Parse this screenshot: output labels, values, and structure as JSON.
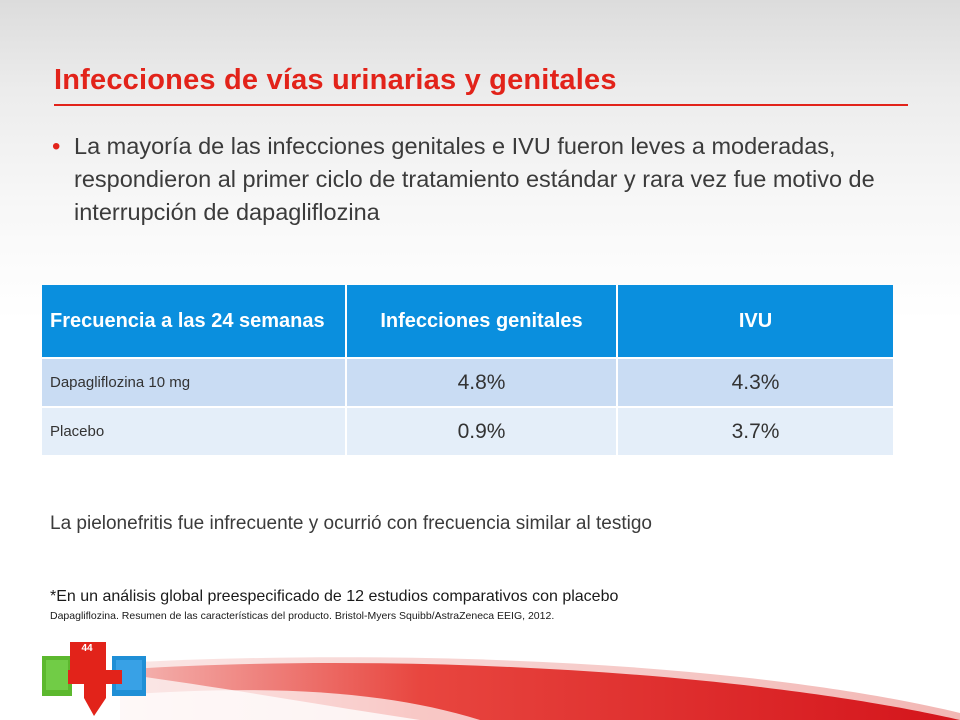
{
  "slide": {
    "title": "Infecciones de vías urinarias y genitales",
    "bullet": "La mayoría de las infecciones genitales e IVU fueron leves a moderadas, respondieron al primer ciclo de tratamiento estándar y rara vez fue motivo de interrupción de dapagliflozina",
    "bullet_marker": "•",
    "table": {
      "headers": [
        "Frecuencia a las 24 semanas",
        "Infecciones genitales",
        "IVU"
      ],
      "rows": [
        {
          "label": "Dapagliflozina 10 mg",
          "genital": "4.8%",
          "ivu": "4.3%"
        },
        {
          "label": "Placebo",
          "genital": "0.9%",
          "ivu": "3.7%"
        }
      ]
    },
    "note": "La pielonefritis fue infrecuente y ocurrió con frecuencia similar al testigo",
    "footnote": "*En un análisis global preespecificado de 12 estudios comparativos con placebo",
    "reference": "Dapagliflozina.  Resumen de las características del producto.  Bristol-Myers Squibb/AstraZeneca EEIG, 2012.",
    "page_number": "44"
  },
  "colors": {
    "accent_red": "#e2231a",
    "header_blue": "#0a8fde",
    "row1_blue": "#c9dcf3",
    "row2_blue": "#e4eef9",
    "logo_green": "#5cb82e",
    "logo_blue": "#1f8fd6"
  }
}
